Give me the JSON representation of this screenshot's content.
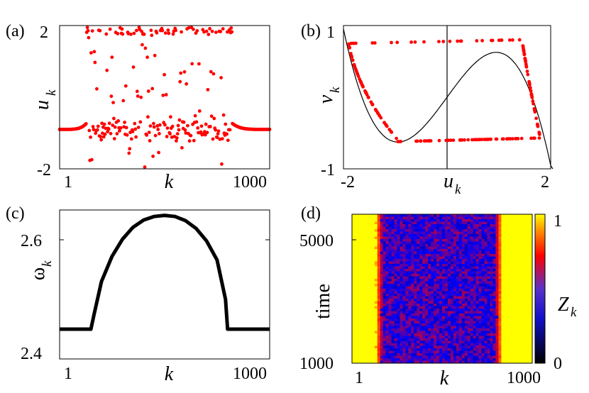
{
  "chart_data": [
    {
      "panel_label": "(a)",
      "type": "scatter",
      "xlabel": "k",
      "ylabel_main": "u",
      "ylabel_sub": "k",
      "xlim": [
        1,
        1000
      ],
      "ylim": [
        -2,
        2
      ],
      "xticks": [
        "1",
        "1000"
      ],
      "yticks": [
        "2",
        "-2"
      ],
      "color": "#ff0000",
      "description": "coherent ends (k<150, k>800) near u=-0.9; incoherent middle scattered over [-2,2] with clusters near 1.9 and -0.9"
    },
    {
      "panel_label": "(b)",
      "type": "scatter",
      "xlabel_main": "u",
      "xlabel_sub": "k",
      "ylabel_main": "v",
      "ylabel_sub": "k",
      "xlim": [
        -2,
        2
      ],
      "ylim": [
        -1,
        1
      ],
      "xticks": [
        "-2",
        "2"
      ],
      "yticks": [
        "1",
        "-1"
      ],
      "color": "#ff0000",
      "curve_color": "#000000",
      "vline_x": 0
    },
    {
      "panel_label": "(c)",
      "type": "line",
      "xlabel": "k",
      "ylabel_main": "ω",
      "ylabel_sub": "k",
      "xlim": [
        1,
        1000
      ],
      "ylim": [
        2.4,
        2.65
      ],
      "xticks": [
        "1",
        "1000"
      ],
      "yticks": [
        "2.6",
        "2.4"
      ],
      "color": "#000000",
      "x": [
        1,
        150,
        165,
        200,
        250,
        300,
        350,
        400,
        450,
        500,
        550,
        600,
        650,
        700,
        750,
        790,
        800,
        1000
      ],
      "y": [
        2.45,
        2.45,
        2.475,
        2.53,
        2.572,
        2.601,
        2.621,
        2.633,
        2.639,
        2.641,
        2.639,
        2.632,
        2.619,
        2.598,
        2.566,
        2.5,
        2.45,
        2.45
      ]
    },
    {
      "panel_label": "(d)",
      "type": "heatmap",
      "xlabel": "k",
      "ylabel": "time",
      "xticks": [
        "1",
        "1000"
      ],
      "yticks": [
        "5000",
        "1000"
      ],
      "colorbar_label_main": "Z",
      "colorbar_label_sub": "k",
      "colorbar_ticks": [
        "1",
        "0"
      ],
      "colormap": [
        "#000000",
        "#0000ff",
        "#ff0000",
        "#ffff00"
      ],
      "coherent_value": 1,
      "incoherent_range": [
        0.25,
        0.55
      ]
    }
  ]
}
